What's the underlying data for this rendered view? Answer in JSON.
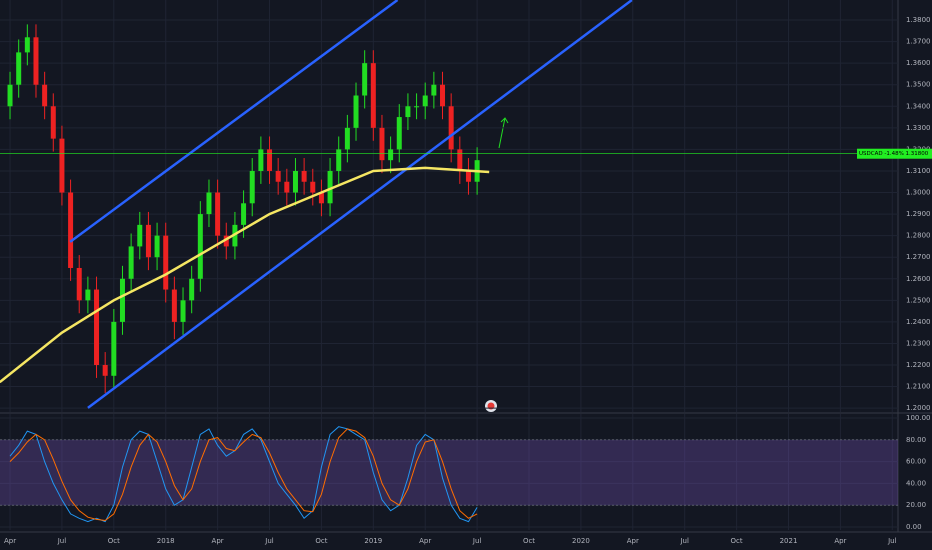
{
  "chart_data": [
    {
      "type": "candlestick",
      "x": [
        0,
        0.5,
        1,
        1.5,
        2,
        2.5,
        3,
        3.5,
        4,
        4.5,
        5,
        5.5,
        6,
        6.5,
        7,
        7.5,
        8,
        8.5,
        9,
        9.5,
        10,
        10.5,
        11,
        11.5,
        12,
        12.5,
        13,
        13.5,
        14,
        14.5,
        15,
        15.5,
        16,
        16.5,
        17,
        17.5,
        18,
        18.5,
        19,
        19.5,
        20,
        20.5,
        21,
        21.5,
        22,
        22.5,
        23,
        23.5,
        24,
        24.5,
        25,
        25.5,
        26,
        26.5,
        27
      ],
      "open": [
        1.34,
        1.35,
        1.365,
        1.372,
        1.35,
        1.34,
        1.325,
        1.3,
        1.265,
        1.25,
        1.255,
        1.22,
        1.215,
        1.24,
        1.26,
        1.275,
        1.285,
        1.27,
        1.28,
        1.255,
        1.24,
        1.25,
        1.26,
        1.29,
        1.3,
        1.28,
        1.275,
        1.285,
        1.295,
        1.31,
        1.32,
        1.31,
        1.305,
        1.3,
        1.31,
        1.305,
        1.3,
        1.295,
        1.31,
        1.32,
        1.33,
        1.345,
        1.36,
        1.33,
        1.315,
        1.32,
        1.335,
        1.34,
        1.34,
        1.345,
        1.35,
        1.34,
        1.32,
        1.31,
        1.305
      ],
      "high": [
        1.356,
        1.371,
        1.378,
        1.378,
        1.356,
        1.346,
        1.331,
        1.306,
        1.271,
        1.261,
        1.261,
        1.226,
        1.246,
        1.266,
        1.281,
        1.291,
        1.291,
        1.286,
        1.286,
        1.261,
        1.256,
        1.266,
        1.296,
        1.306,
        1.306,
        1.286,
        1.291,
        1.301,
        1.316,
        1.326,
        1.326,
        1.316,
        1.311,
        1.316,
        1.316,
        1.311,
        1.306,
        1.316,
        1.326,
        1.336,
        1.351,
        1.366,
        1.366,
        1.336,
        1.326,
        1.341,
        1.346,
        1.346,
        1.351,
        1.356,
        1.356,
        1.346,
        1.326,
        1.316,
        1.321
      ],
      "low": [
        1.334,
        1.344,
        1.359,
        1.344,
        1.334,
        1.319,
        1.294,
        1.259,
        1.244,
        1.244,
        1.214,
        1.207,
        1.209,
        1.234,
        1.254,
        1.269,
        1.264,
        1.264,
        1.249,
        1.232,
        1.234,
        1.244,
        1.254,
        1.284,
        1.274,
        1.269,
        1.269,
        1.279,
        1.289,
        1.304,
        1.304,
        1.299,
        1.294,
        1.294,
        1.299,
        1.294,
        1.289,
        1.289,
        1.304,
        1.314,
        1.324,
        1.339,
        1.324,
        1.309,
        1.309,
        1.314,
        1.329,
        1.334,
        1.334,
        1.339,
        1.334,
        1.314,
        1.304,
        1.299,
        1.299
      ],
      "close": [
        1.35,
        1.365,
        1.372,
        1.35,
        1.34,
        1.325,
        1.3,
        1.265,
        1.25,
        1.255,
        1.22,
        1.215,
        1.24,
        1.26,
        1.275,
        1.285,
        1.27,
        1.28,
        1.255,
        1.24,
        1.25,
        1.26,
        1.29,
        1.3,
        1.28,
        1.275,
        1.285,
        1.295,
        1.31,
        1.32,
        1.31,
        1.305,
        1.3,
        1.31,
        1.305,
        1.3,
        1.295,
        1.31,
        1.32,
        1.33,
        1.345,
        1.36,
        1.33,
        1.315,
        1.32,
        1.335,
        1.34,
        1.34,
        1.345,
        1.35,
        1.34,
        1.32,
        1.31,
        1.305,
        1.315
      ],
      "up_color": "#22dd22",
      "down_color": "#ee2222",
      "series": [
        {
          "color": "#f5e663",
          "x": [
            -0.6,
            3,
            6,
            9,
            12,
            15,
            18,
            21,
            24,
            27.7
          ],
          "values": [
            1.212,
            1.235,
            1.25,
            1.262,
            1.276,
            1.29,
            1.3,
            1.31,
            1.3114,
            1.3095
          ]
        }
      ],
      "trendlines": [
        {
          "color": "#2962ff",
          "x": [
            3.47,
            22.4
          ],
          "values": [
            1.2771,
            1.3893
          ]
        },
        {
          "color": "#2962ff",
          "x": [
            4.5,
            35.95
          ],
          "values": [
            1.2001,
            1.3893
          ]
        }
      ],
      "price_line": 1.318,
      "price_line_color": "#22ee22",
      "price_label": "USDCAD -1.48% 1.31800",
      "xlim": [
        -0.58,
        51.33
      ],
      "ylim": [
        1.1982,
        1.3893
      ],
      "yticks": [
        {
          "value": 1.2,
          "label": "1.2000"
        },
        {
          "value": 1.21,
          "label": "1.2100"
        },
        {
          "value": 1.22,
          "label": "1.2200"
        },
        {
          "value": 1.23,
          "label": "1.2300"
        },
        {
          "value": 1.24,
          "label": "1.2400"
        },
        {
          "value": 1.25,
          "label": "1.2500"
        },
        {
          "value": 1.26,
          "label": "1.2600"
        },
        {
          "value": 1.27,
          "label": "1.2700"
        },
        {
          "value": 1.28,
          "label": "1.2800"
        },
        {
          "value": 1.29,
          "label": "1.2900"
        },
        {
          "value": 1.3,
          "label": "1.3000"
        },
        {
          "value": 1.31,
          "label": "1.3100"
        },
        {
          "value": 1.32,
          "label": "1.3200"
        },
        {
          "value": 1.33,
          "label": "1.3300"
        },
        {
          "value": 1.34,
          "label": "1.3400"
        },
        {
          "value": 1.35,
          "label": "1.3500"
        },
        {
          "value": 1.36,
          "label": "1.3600"
        },
        {
          "value": 1.37,
          "label": "1.3700"
        },
        {
          "value": 1.38,
          "label": "1.3800"
        }
      ],
      "grid": true
    },
    {
      "type": "line",
      "x": [
        0,
        0.5,
        1,
        1.5,
        2,
        2.5,
        3,
        3.5,
        4,
        4.5,
        5,
        5.5,
        6,
        6.5,
        7,
        7.5,
        8,
        8.5,
        9,
        9.5,
        10,
        10.5,
        11,
        11.5,
        12,
        12.5,
        13,
        13.5,
        14,
        14.5,
        15,
        15.5,
        16,
        16.5,
        17,
        17.5,
        18,
        18.5,
        19,
        19.5,
        20,
        20.5,
        21,
        21.5,
        22,
        22.5,
        23,
        23.5,
        24,
        24.5,
        25,
        25.5,
        26,
        26.5,
        27
      ],
      "series": [
        {
          "color": "#2196f3",
          "values": [
            65,
            75,
            88,
            85,
            60,
            40,
            25,
            12,
            8,
            5,
            8,
            5,
            20,
            55,
            80,
            88,
            85,
            60,
            35,
            20,
            25,
            55,
            85,
            90,
            75,
            65,
            70,
            85,
            90,
            80,
            60,
            40,
            30,
            20,
            8,
            15,
            55,
            85,
            92,
            90,
            85,
            80,
            50,
            25,
            15,
            20,
            45,
            75,
            85,
            80,
            45,
            20,
            8,
            5,
            18
          ]
        },
        {
          "color": "#ff6d00",
          "values": [
            60,
            68,
            78,
            85,
            80,
            62,
            42,
            25,
            15,
            9,
            7,
            6,
            12,
            30,
            55,
            75,
            85,
            78,
            60,
            38,
            25,
            35,
            60,
            80,
            82,
            72,
            70,
            78,
            85,
            82,
            68,
            50,
            35,
            25,
            15,
            14,
            30,
            60,
            82,
            90,
            88,
            82,
            65,
            40,
            25,
            20,
            35,
            60,
            78,
            80,
            60,
            35,
            15,
            8,
            12
          ]
        }
      ],
      "band": [
        20,
        80
      ],
      "band_color": "#7e57c2",
      "xlim": [
        -0.58,
        51.33
      ],
      "ylim": [
        -2.75,
        103.7
      ],
      "yticks": [
        {
          "value": 0,
          "label": "0.00"
        },
        {
          "value": 20,
          "label": "20.00"
        },
        {
          "value": 40,
          "label": "40.00"
        },
        {
          "value": 60,
          "label": "60.00"
        },
        {
          "value": 80,
          "label": "80.00"
        },
        {
          "value": 100,
          "label": "100.00"
        }
      ],
      "xticks": [
        {
          "value": 0,
          "label": "Apr"
        },
        {
          "value": 3,
          "label": "Jul"
        },
        {
          "value": 6,
          "label": "Oct"
        },
        {
          "value": 9,
          "label": "2018"
        },
        {
          "value": 12,
          "label": "Apr"
        },
        {
          "value": 15,
          "label": "Jul"
        },
        {
          "value": 18,
          "label": "Oct"
        },
        {
          "value": 21,
          "label": "2019"
        },
        {
          "value": 24,
          "label": "Apr"
        },
        {
          "value": 27,
          "label": "Jul"
        },
        {
          "value": 30,
          "label": "Oct"
        },
        {
          "value": 33,
          "label": "2020"
        },
        {
          "value": 36,
          "label": "Apr"
        },
        {
          "value": 39,
          "label": "Jul"
        },
        {
          "value": 42,
          "label": "Oct"
        },
        {
          "value": 45,
          "label": "2021"
        },
        {
          "value": 48,
          "label": "Apr"
        },
        {
          "value": 51,
          "label": "Jul"
        }
      ],
      "grid": true
    }
  ]
}
